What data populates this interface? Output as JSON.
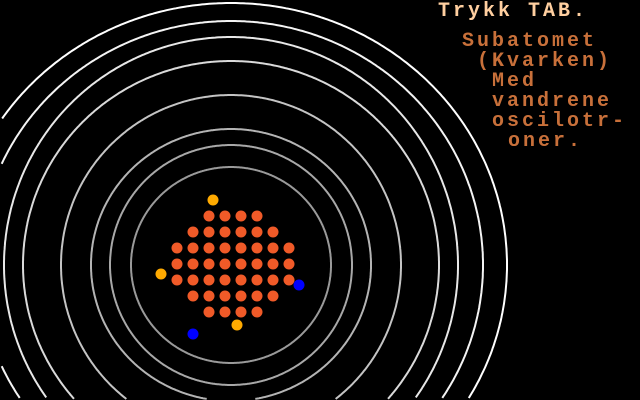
{
  "prompt": "Trykk TAB.",
  "description": [
    "Subatomet",
    "(Kvarken)",
    "Med",
    "vandrene",
    "oscilotr-",
    "oner."
  ],
  "colors": {
    "background": "#000000",
    "prompt_text": "#ffcfa0",
    "description_text": "#c8703a",
    "nucleus": "#f05a28",
    "quark_orange": "#ffaa00",
    "quark_blue": "#0000ff"
  },
  "nucleus_rows": [
    [
      2,
      5
    ],
    [
      1,
      6
    ],
    [
      0,
      7
    ],
    [
      0,
      7
    ],
    [
      0,
      7
    ],
    [
      1,
      6
    ],
    [
      2,
      5
    ]
  ],
  "particles": [
    {
      "type": "orange"
    },
    {
      "type": "orange"
    },
    {
      "type": "orange"
    },
    {
      "type": "blue"
    },
    {
      "type": "blue"
    }
  ]
}
